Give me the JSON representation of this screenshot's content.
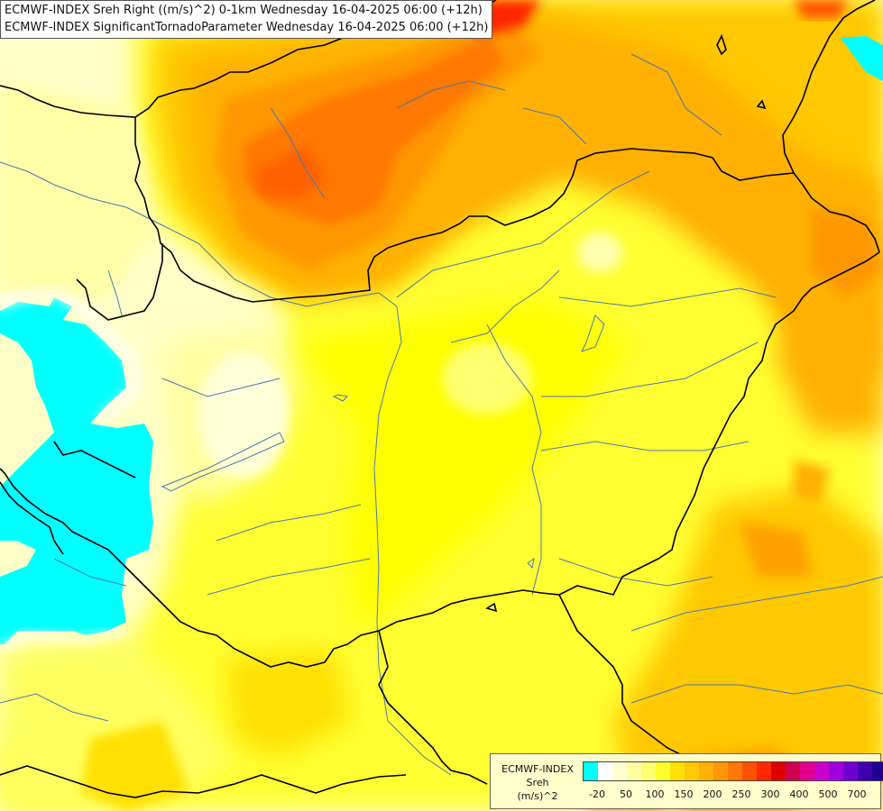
{
  "header": {
    "line1": "ECMWF-INDEX Sreh Right ((m/s)^2) 0-1km Wednesday 16-04-2025 06:00 (+12h)",
    "line2": "ECMWF-INDEX SignificantTornadoParameter Wednesday 16-04-2025 06:00 (+12h)"
  },
  "legend": {
    "title_line1": "ECMWF-INDEX",
    "title_line2": "Sreh",
    "title_line3": "(m/s)^2",
    "colors": [
      "#00ffff",
      "#ffffff",
      "#ffffd0",
      "#ffffa0",
      "#ffff70",
      "#ffff30",
      "#ffe000",
      "#ffc800",
      "#ffb000",
      "#ff9800",
      "#ff7800",
      "#ff5000",
      "#ff2800",
      "#e00000",
      "#d00050",
      "#e0008c",
      "#c800c8",
      "#a000e0",
      "#7000d0",
      "#4000b0",
      "#200090",
      "#000070"
    ],
    "labels": [
      "-20",
      "50",
      "100",
      "150",
      "200",
      "250",
      "300",
      "400",
      "500",
      "700"
    ]
  },
  "colors": {
    "background": "#ffffc0",
    "cyan": "#00ffff",
    "border": "#000000",
    "river": "#4a7ab0"
  }
}
